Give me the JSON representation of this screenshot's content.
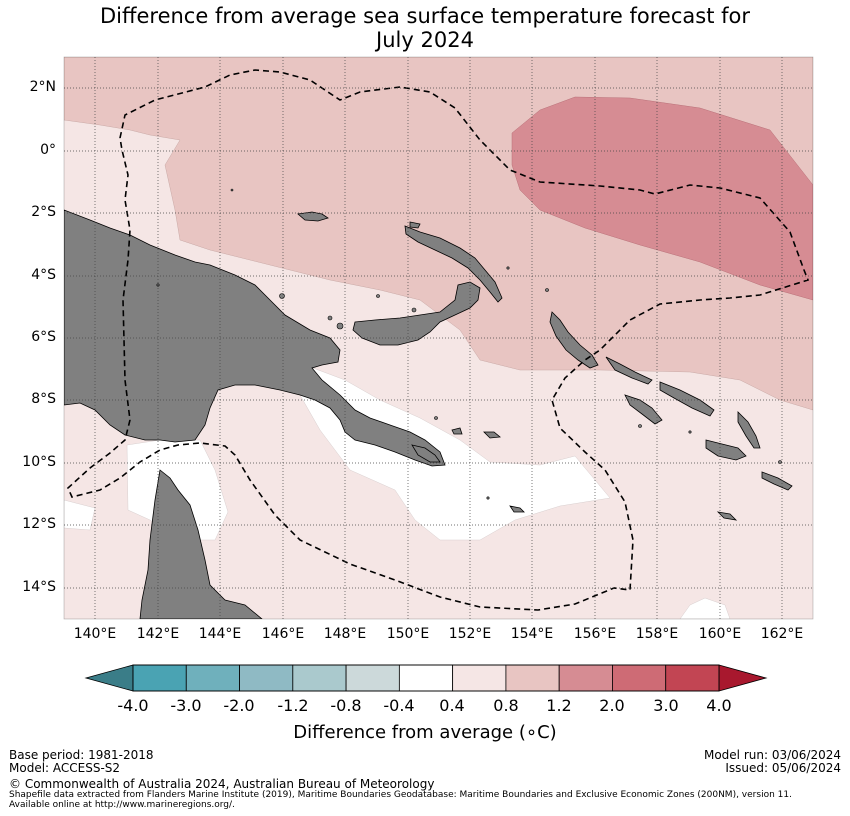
{
  "title": {
    "line1": "Difference from average sea surface temperature forecast for",
    "line2": "July 2024"
  },
  "axes": {
    "lat_labels": [
      "2°N",
      "0°",
      "2°S",
      "4°S",
      "6°S",
      "8°S",
      "10°S",
      "12°S",
      "14°S"
    ],
    "lon_labels": [
      "140°E",
      "142°E",
      "144°E",
      "146°E",
      "148°E",
      "150°E",
      "152°E",
      "154°E",
      "156°E",
      "158°E",
      "160°E",
      "162°E"
    ],
    "lon_range": [
      139,
      163
    ],
    "lat_range": [
      -15,
      3
    ]
  },
  "colorbar": {
    "label": "Difference from average (∘C)",
    "ticks": [
      "-4.0",
      "-3.0",
      "-2.0",
      "-1.2",
      "-0.8",
      "-0.4",
      "0.4",
      "0.8",
      "1.2",
      "2.0",
      "3.0",
      "4.0"
    ],
    "colors": [
      "#3a7d88",
      "#4aa3b3",
      "#6fb0bc",
      "#8fbac4",
      "#aac9cd",
      "#ccd9da",
      "#ffffff",
      "#f5e6e5",
      "#e8c5c2",
      "#d68c93",
      "#ce6b75",
      "#c24553",
      "#a8182e"
    ]
  },
  "map_layers": {
    "land_color": "#808080",
    "anomaly_colors": {
      "neutral": "#ffffff",
      "band_0_4_0_8": "#f5e6e5",
      "band_0_8_1_2": "#e8c5c2",
      "band_1_2_2_0": "#d68c93"
    }
  },
  "footer": {
    "base_period": "Base period: 1981-2018",
    "model": "Model: ACCESS-S2",
    "model_run": "Model run: 03/06/2024",
    "issued": "Issued: 05/06/2024",
    "copyright": "© Commonwealth of Australia 2024, Australian Bureau of Meteorology",
    "source_line1": "Shapefile data extracted from Flanders Marine Institute (2019), Maritime Boundaries Geodatabase: Maritime Boundaries and Exclusive Economic Zones (200NM), version 11.",
    "source_line2": "Available online at http://www.marineregions.org/."
  }
}
